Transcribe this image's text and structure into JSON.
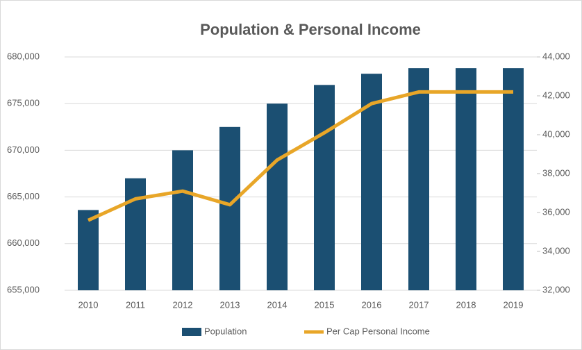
{
  "chart_data": {
    "type": "bar_line",
    "title": "Population & Personal Income",
    "categories": [
      "2010",
      "2011",
      "2012",
      "2013",
      "2014",
      "2015",
      "2016",
      "2017",
      "2018",
      "2019"
    ],
    "series": [
      {
        "name": "Population",
        "color": "#1b4f72",
        "type": "bar",
        "values": [
          663600,
          667000,
          670000,
          672500,
          675000,
          677000,
          678200,
          678800,
          678800,
          678800
        ]
      },
      {
        "name": "Per Cap Personal Income",
        "color": "#e8a628",
        "type": "line",
        "axis": "y2",
        "values": [
          35600,
          36700,
          37100,
          36400,
          38700,
          40100,
          41600,
          42200,
          42200,
          42200
        ]
      }
    ],
    "ylim": [
      655000,
      680000
    ],
    "yticks": [
      {
        "value": 655000,
        "label": "655,000"
      },
      {
        "value": 660000,
        "label": "660,000"
      },
      {
        "value": 665000,
        "label": "665,000"
      },
      {
        "value": 670000,
        "label": "670,000"
      },
      {
        "value": 675000,
        "label": "675,000"
      },
      {
        "value": 680000,
        "label": "680,000"
      }
    ],
    "y2lim": [
      32000,
      44000
    ],
    "y2ticks": [
      {
        "value": 32000,
        "label": "32,000"
      },
      {
        "value": 34000,
        "label": "34,000"
      },
      {
        "value": 36000,
        "label": "36,000"
      },
      {
        "value": 38000,
        "label": "38,000"
      },
      {
        "value": 40000,
        "label": "40,000"
      },
      {
        "value": 42000,
        "label": "42,000"
      },
      {
        "value": 44000,
        "label": "44,000"
      }
    ],
    "legend": "bottom"
  }
}
